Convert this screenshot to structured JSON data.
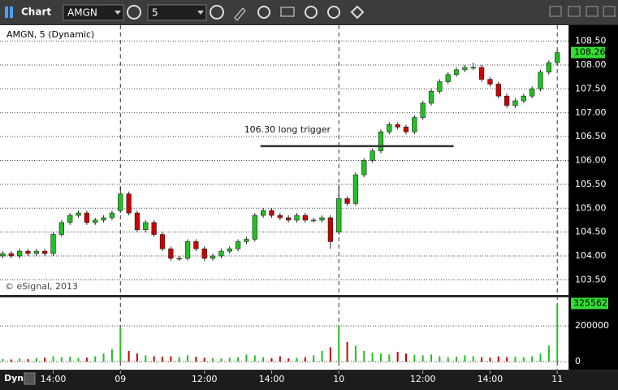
{
  "toolbar": {
    "title": "Chart",
    "symbol": "AMGN",
    "interval": "5"
  },
  "chart_data": {
    "type": "candlestick",
    "title": "AMGN, 5 (Dynamic)",
    "copyright": "© eSignal, 2013",
    "footer_label": "Dyn",
    "up_color": "#22c022",
    "down_color": "#cc0000",
    "x": [
      0,
      3,
      6,
      9,
      12,
      15,
      18,
      21,
      24,
      27,
      30,
      33,
      36,
      39,
      42,
      45,
      48,
      51,
      54,
      57,
      60,
      63,
      66,
      69,
      72,
      75,
      78,
      81,
      84,
      87,
      90,
      93,
      96,
      99,
      102,
      105,
      108,
      111,
      114,
      117,
      120,
      123,
      126,
      129,
      132,
      135,
      138,
      141,
      144,
      147,
      150,
      153,
      156,
      159,
      162,
      165,
      168,
      171,
      174,
      177,
      180,
      183,
      186,
      189,
      192,
      195,
      198
    ],
    "open": [
      104.0,
      104.05,
      104.0,
      104.1,
      104.05,
      104.1,
      104.05,
      104.45,
      104.7,
      104.85,
      104.9,
      104.7,
      104.75,
      104.8,
      104.95,
      105.3,
      104.9,
      104.55,
      104.7,
      104.45,
      104.15,
      103.95,
      103.95,
      104.3,
      104.15,
      103.95,
      104.0,
      104.1,
      104.15,
      104.3,
      104.35,
      104.85,
      104.95,
      104.85,
      104.8,
      104.75,
      104.85,
      104.75,
      104.75,
      104.8,
      104.5,
      105.2,
      105.1,
      105.7,
      106.0,
      106.2,
      106.6,
      106.75,
      106.7,
      106.6,
      106.9,
      107.2,
      107.45,
      107.65,
      107.8,
      107.9,
      107.95,
      107.95,
      107.7,
      107.6,
      107.35,
      107.15,
      107.25,
      107.35,
      107.5,
      107.85,
      108.05
    ],
    "high": [
      104.1,
      104.1,
      104.15,
      104.15,
      104.15,
      104.15,
      104.5,
      104.75,
      104.9,
      104.95,
      104.95,
      104.8,
      104.85,
      104.95,
      105.45,
      105.35,
      104.95,
      104.75,
      104.75,
      104.5,
      104.2,
      104.0,
      104.35,
      104.35,
      104.2,
      104.05,
      104.15,
      104.2,
      104.35,
      104.4,
      104.9,
      105.0,
      105.0,
      104.9,
      104.85,
      104.9,
      104.9,
      104.8,
      104.85,
      104.85,
      105.5,
      105.25,
      105.75,
      106.05,
      106.25,
      106.65,
      106.8,
      106.8,
      106.75,
      106.95,
      107.25,
      107.5,
      107.7,
      107.85,
      107.95,
      108.0,
      108.05,
      108.0,
      107.75,
      107.65,
      107.4,
      107.3,
      107.4,
      107.55,
      107.9,
      108.1,
      108.3
    ],
    "low": [
      103.95,
      103.95,
      103.95,
      104.0,
      104.0,
      104.0,
      104.0,
      104.4,
      104.65,
      104.8,
      104.65,
      104.65,
      104.7,
      104.75,
      104.9,
      104.85,
      104.5,
      104.5,
      104.4,
      104.1,
      103.9,
      103.9,
      103.9,
      104.1,
      103.9,
      103.9,
      103.95,
      104.05,
      104.1,
      104.25,
      104.3,
      104.8,
      104.8,
      104.75,
      104.7,
      104.7,
      104.7,
      104.7,
      104.7,
      104.15,
      104.45,
      105.05,
      105.05,
      105.65,
      105.95,
      106.15,
      106.55,
      106.65,
      106.55,
      106.55,
      106.85,
      107.15,
      107.4,
      107.6,
      107.75,
      107.85,
      107.9,
      107.65,
      107.55,
      107.3,
      107.1,
      107.1,
      107.2,
      107.3,
      107.45,
      107.8,
      108.0
    ],
    "close": [
      104.05,
      104.0,
      104.1,
      104.05,
      104.1,
      104.05,
      104.45,
      104.7,
      104.85,
      104.9,
      104.7,
      104.75,
      104.8,
      104.9,
      105.3,
      104.9,
      104.55,
      104.7,
      104.45,
      104.15,
      103.95,
      103.95,
      104.3,
      104.15,
      103.95,
      104.0,
      104.1,
      104.15,
      104.3,
      104.35,
      104.85,
      104.95,
      104.85,
      104.8,
      104.75,
      104.85,
      104.75,
      104.75,
      104.8,
      104.3,
      105.2,
      105.1,
      105.7,
      106.0,
      106.2,
      106.6,
      106.75,
      106.7,
      106.6,
      106.9,
      107.2,
      107.45,
      107.65,
      107.8,
      107.9,
      107.95,
      107.95,
      107.7,
      107.6,
      107.35,
      107.15,
      107.25,
      107.35,
      107.5,
      107.85,
      108.05,
      108.26
    ],
    "xlim": [
      -1,
      202
    ],
    "xticks": [
      {
        "value": 18,
        "label": "14:00"
      },
      {
        "value": 42,
        "label": "09"
      },
      {
        "value": 72,
        "label": "12:00"
      },
      {
        "value": 96,
        "label": "14:00"
      },
      {
        "value": 120,
        "label": "10"
      },
      {
        "value": 150,
        "label": "12:00"
      },
      {
        "value": 174,
        "label": "14:00"
      },
      {
        "value": 198,
        "label": "11"
      }
    ],
    "ylim": [
      103.2,
      108.8
    ],
    "yticks": [
      {
        "value": 103.5,
        "label": "103.50"
      },
      {
        "value": 104,
        "label": "104.00"
      },
      {
        "value": 104.5,
        "label": "104.50"
      },
      {
        "value": 105,
        "label": "105.00"
      },
      {
        "value": 105.5,
        "label": "105.50"
      },
      {
        "value": 106,
        "label": "106.00"
      },
      {
        "value": 106.5,
        "label": "106.50"
      },
      {
        "value": 107,
        "label": "107.00"
      },
      {
        "value": 107.5,
        "label": "107.50"
      },
      {
        "value": 108,
        "label": "108.00"
      },
      {
        "value": 108.5,
        "label": "108.50"
      }
    ],
    "last_price": 108.26,
    "annotation": {
      "text": "106.30 long trigger",
      "value": 106.3,
      "x": [
        92,
        161
      ]
    },
    "volume": {
      "values": [
        15000,
        12000,
        18000,
        14000,
        20000,
        22000,
        30000,
        25000,
        28000,
        20000,
        22000,
        30000,
        45000,
        70000,
        190000,
        60000,
        45000,
        35000,
        30000,
        28000,
        30000,
        25000,
        35000,
        28000,
        22000,
        20000,
        18000,
        22000,
        25000,
        40000,
        35000,
        25000,
        20000,
        30000,
        18000,
        22000,
        25000,
        35000,
        60000,
        80000,
        205000,
        110000,
        90000,
        60000,
        50000,
        45000,
        40000,
        55000,
        45000,
        38000,
        35000,
        40000,
        30000,
        25000,
        28000,
        35000,
        30000,
        25000,
        22000,
        30000,
        25000,
        28000,
        25000,
        30000,
        45000,
        90000,
        325562
      ],
      "ylim": [
        -45000,
        364000
      ],
      "yticks": [
        0,
        200000
      ],
      "last_value": 325562
    }
  }
}
